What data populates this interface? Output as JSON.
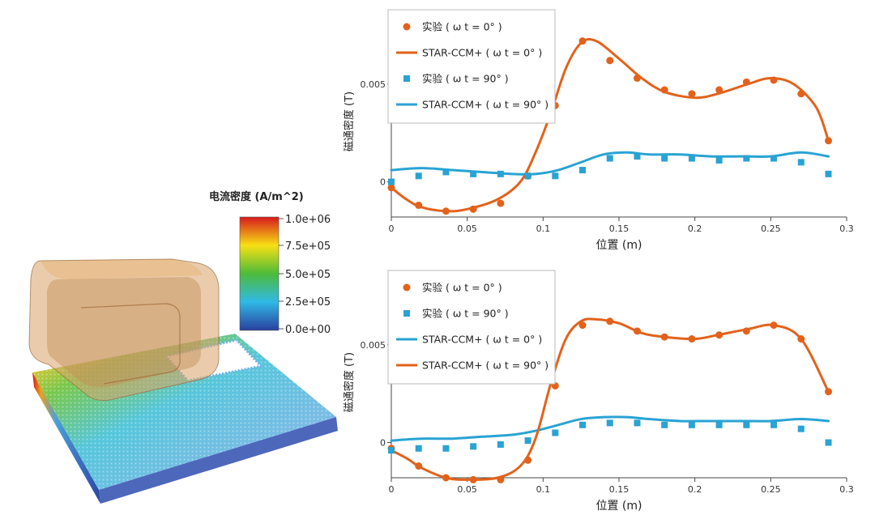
{
  "colors": {
    "orange": "#E2621B",
    "blue": "#29A3D3",
    "axis": "#444444"
  },
  "field_view": {
    "colorbar_title": "电流密度 (A/m^2)",
    "colorbar_ticks": [
      "1.0e+06",
      "7.5e+05",
      "5.0e+05",
      "2.5e+05",
      "0.0e+00"
    ],
    "colorbar_colors": [
      "#d7191c",
      "#f7e014",
      "#4dbb3a",
      "#30b9e6",
      "#2a3f9e"
    ],
    "icon": "magnetic-core-coil-3d-model"
  },
  "chart_data": [
    {
      "type": "line",
      "xlabel": "位置 (m)",
      "ylabel": "磁通密度 (T)",
      "xlim": [
        0,
        0.3
      ],
      "ylim": [
        -0.0018,
        0.0088
      ],
      "xticks": [
        0,
        0.05,
        0.1,
        0.15,
        0.2,
        0.25,
        0.3
      ],
      "xtick_labels": [
        "0",
        "0.05",
        "0.1",
        "0.15",
        "0.2",
        "0.25",
        "0.3"
      ],
      "yticks": [
        0,
        0.005
      ],
      "ytick_labels": [
        "0",
        "0.005"
      ],
      "legend": "top-left",
      "series": [
        {
          "name": "实验 ( ω t = 0° )",
          "kind": "scatter-circle",
          "color": "#E2621B",
          "x": [
            0,
            0.018,
            0.036,
            0.054,
            0.072,
            0.09,
            0.108,
            0.126,
            0.144,
            0.162,
            0.18,
            0.198,
            0.216,
            0.234,
            0.252,
            0.27,
            0.288
          ],
          "y": [
            -0.0003,
            -0.0012,
            -0.0015,
            -0.0014,
            -0.0011,
            0.0003,
            0.0039,
            0.0072,
            0.0062,
            0.0053,
            0.0047,
            0.0045,
            0.0047,
            0.0051,
            0.0052,
            0.0045,
            0.0021
          ]
        },
        {
          "name": "STAR-CCM+ ( ω t = 0° )",
          "kind": "line",
          "color": "#E2621B",
          "x": [
            0,
            0.01,
            0.02,
            0.036,
            0.05,
            0.07,
            0.085,
            0.095,
            0.105,
            0.115,
            0.125,
            0.135,
            0.15,
            0.165,
            0.18,
            0.2,
            0.215,
            0.235,
            0.25,
            0.265,
            0.28,
            0.288
          ],
          "y": [
            -0.0003,
            -0.0009,
            -0.0013,
            -0.0015,
            -0.0014,
            -0.0009,
            0.0,
            0.0015,
            0.0035,
            0.0058,
            0.0071,
            0.0072,
            0.0063,
            0.0053,
            0.0046,
            0.0043,
            0.0045,
            0.005,
            0.0053,
            0.005,
            0.0038,
            0.0021
          ]
        },
        {
          "name": "实验 ( ω t = 90° )",
          "kind": "scatter-square",
          "color": "#29A3D3",
          "x": [
            0,
            0.018,
            0.036,
            0.054,
            0.072,
            0.09,
            0.108,
            0.126,
            0.144,
            0.162,
            0.18,
            0.198,
            0.216,
            0.234,
            0.252,
            0.27,
            0.288
          ],
          "y": [
            0.0,
            0.0003,
            0.0005,
            0.0004,
            0.0004,
            0.0003,
            0.0003,
            0.0006,
            0.0012,
            0.0013,
            0.0012,
            0.0012,
            0.0011,
            0.0012,
            0.0012,
            0.001,
            0.0004
          ]
        },
        {
          "name": "STAR-CCM+ ( ω t = 90° )",
          "kind": "line",
          "color": "#29A3D3",
          "x": [
            0,
            0.02,
            0.04,
            0.06,
            0.08,
            0.095,
            0.11,
            0.125,
            0.14,
            0.155,
            0.17,
            0.19,
            0.21,
            0.23,
            0.25,
            0.27,
            0.288
          ],
          "y": [
            0.0006,
            0.0007,
            0.0006,
            0.0005,
            0.0004,
            0.0004,
            0.0006,
            0.001,
            0.0014,
            0.0015,
            0.0014,
            0.0014,
            0.0013,
            0.0013,
            0.0013,
            0.0015,
            0.0013
          ]
        }
      ]
    },
    {
      "type": "line",
      "xlabel": "位置 (m)",
      "ylabel": "磁通密度 (T)",
      "xlim": [
        0,
        0.3
      ],
      "ylim": [
        -0.0018,
        0.0088
      ],
      "xticks": [
        0,
        0.05,
        0.1,
        0.15,
        0.2,
        0.25,
        0.3
      ],
      "xtick_labels": [
        "0",
        "0.05",
        "0.1",
        "0.15",
        "0.2",
        "0.25",
        "0.3"
      ],
      "yticks": [
        0,
        0.005
      ],
      "ytick_labels": [
        "0",
        "0.005"
      ],
      "legend": "top-left",
      "series": [
        {
          "name": "实验 ( ω t = 0° )",
          "kind": "scatter-circle",
          "color": "#E2621B",
          "x": [
            0,
            0.018,
            0.036,
            0.054,
            0.072,
            0.09,
            0.108,
            0.126,
            0.144,
            0.162,
            0.18,
            0.198,
            0.216,
            0.234,
            0.252,
            0.27,
            0.288
          ],
          "y": [
            -0.0003,
            -0.0012,
            -0.0018,
            -0.0019,
            -0.0019,
            -0.0009,
            0.0029,
            0.006,
            0.0062,
            0.0057,
            0.0054,
            0.0053,
            0.0055,
            0.0057,
            0.006,
            0.0053,
            0.0026
          ]
        },
        {
          "name": "实验 ( ω t = 90° )",
          "kind": "scatter-square",
          "color": "#29A3D3",
          "x": [
            0,
            0.018,
            0.036,
            0.054,
            0.072,
            0.09,
            0.108,
            0.126,
            0.144,
            0.162,
            0.18,
            0.198,
            0.216,
            0.234,
            0.252,
            0.27,
            0.288
          ],
          "y": [
            -0.0004,
            -0.0003,
            -0.0003,
            -0.0002,
            -0.0001,
            0.0001,
            0.0005,
            0.0009,
            0.001,
            0.001,
            0.0009,
            0.0009,
            0.0009,
            0.0009,
            0.0009,
            0.0007,
            0.0
          ]
        },
        {
          "name": "STAR-CCM+ ( ω t = 0° )",
          "kind": "line",
          "color": "#29A3D3",
          "x": [
            0,
            0.02,
            0.04,
            0.06,
            0.08,
            0.095,
            0.11,
            0.125,
            0.14,
            0.155,
            0.17,
            0.19,
            0.21,
            0.23,
            0.25,
            0.27,
            0.288
          ],
          "y": [
            0.0001,
            0.0002,
            0.0002,
            0.0003,
            0.0004,
            0.0006,
            0.0009,
            0.0012,
            0.0013,
            0.0013,
            0.0012,
            0.0011,
            0.0011,
            0.0011,
            0.0011,
            0.0012,
            0.0011
          ]
        },
        {
          "name": "STAR-CCM+ ( ω t = 90° )",
          "kind": "line",
          "color": "#E2621B",
          "x": [
            0,
            0.01,
            0.02,
            0.036,
            0.05,
            0.07,
            0.085,
            0.095,
            0.105,
            0.115,
            0.125,
            0.135,
            0.15,
            0.165,
            0.18,
            0.2,
            0.215,
            0.235,
            0.252,
            0.27,
            0.288
          ],
          "y": [
            -0.0004,
            -0.0008,
            -0.0013,
            -0.0018,
            -0.0019,
            -0.0018,
            -0.0012,
            0.0002,
            0.003,
            0.0053,
            0.0062,
            0.0063,
            0.0061,
            0.0056,
            0.0054,
            0.0053,
            0.0055,
            0.0058,
            0.006,
            0.0053,
            0.0026
          ]
        }
      ]
    }
  ]
}
